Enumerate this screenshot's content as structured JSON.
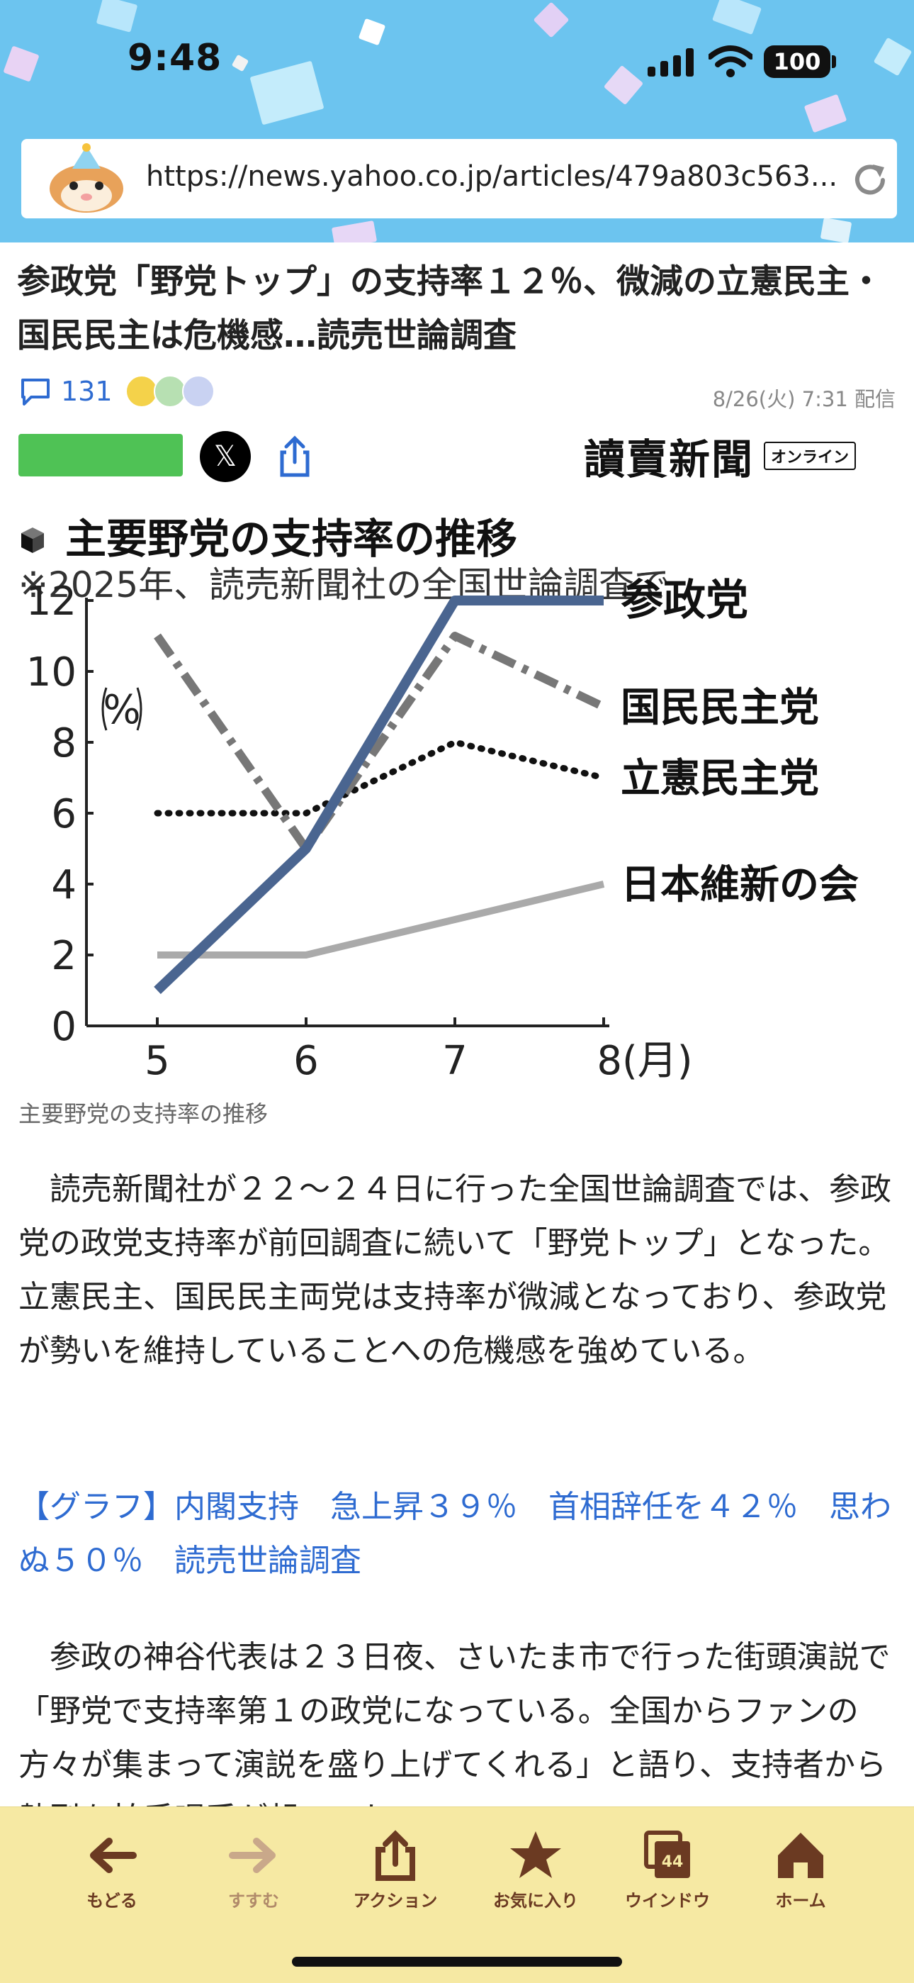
{
  "status": {
    "time": "9:48",
    "battery": "100"
  },
  "browser": {
    "url": "https://news.yahoo.co.jp/articles/479a803c563..."
  },
  "article": {
    "headline": "参政党「野党トップ」の支持率１２％、微減の立憲民主・国民民主は危機感…読売世論調査",
    "comment_count": "131",
    "date": "8/26(火) 7:31 配信",
    "publisher": "讀賣新聞",
    "publisher_badge": "オンライン",
    "x_label": "𝕏",
    "image_caption": "主要野党の支持率の推移",
    "paragraph1": "　読売新聞社が２２～２４日に行った全国世論調査では、参政党の政党支持率が前回調査に続いて「野党トップ」となった。立憲民主、国民民主両党は支持率が微減となっており、参政党が勢いを維持していることへの危機感を強めている。",
    "related_link": "【グラフ】内閣支持　急上昇３９％　首相辞任を４２％　思わぬ５０％　読売世論調査",
    "paragraph2": "　参政の神谷代表は２３日夜、さいたま市で行った街頭演説で「野党で支持率第１の政党になっている。全国からファンの方々が集まって演説を盛り上げてくれる」と語り、支持者から熱烈な拍手喝采が起こった。"
  },
  "chart_data": {
    "type": "line",
    "title": "主要野党の支持率の推移",
    "subtitle": "※2025年、読売新聞社の全国世論調査で",
    "ylabel": "%",
    "x": [
      "5",
      "6",
      "7",
      "8(月)"
    ],
    "ylim": [
      0,
      12
    ],
    "yticks": [
      "0",
      "2",
      "4",
      "6",
      "8",
      "10",
      "12"
    ],
    "series": [
      {
        "name": "参政党",
        "values": [
          1,
          5,
          12,
          12
        ],
        "color": "#4a6590",
        "style": "solid"
      },
      {
        "name": "国民民主党",
        "values": [
          11,
          5,
          11,
          9
        ],
        "color": "#777777",
        "style": "dashdot"
      },
      {
        "name": "立憲民主党",
        "values": [
          6,
          6,
          8,
          7
        ],
        "color": "#111111",
        "style": "dotted"
      },
      {
        "name": "日本維新の会",
        "values": [
          2,
          2,
          3,
          4
        ],
        "color": "#aaaaaa",
        "style": "solid"
      }
    ]
  },
  "toolbar": {
    "items": [
      {
        "label": "もどる",
        "icon": "back-arrow-icon"
      },
      {
        "label": "すすむ",
        "icon": "forward-arrow-icon"
      },
      {
        "label": "アクション",
        "icon": "share-icon"
      },
      {
        "label": "お気に入り",
        "icon": "star-icon"
      },
      {
        "label": "ウインドウ",
        "icon": "windows-icon",
        "badge": "44"
      },
      {
        "label": "ホーム",
        "icon": "home-icon"
      }
    ]
  }
}
